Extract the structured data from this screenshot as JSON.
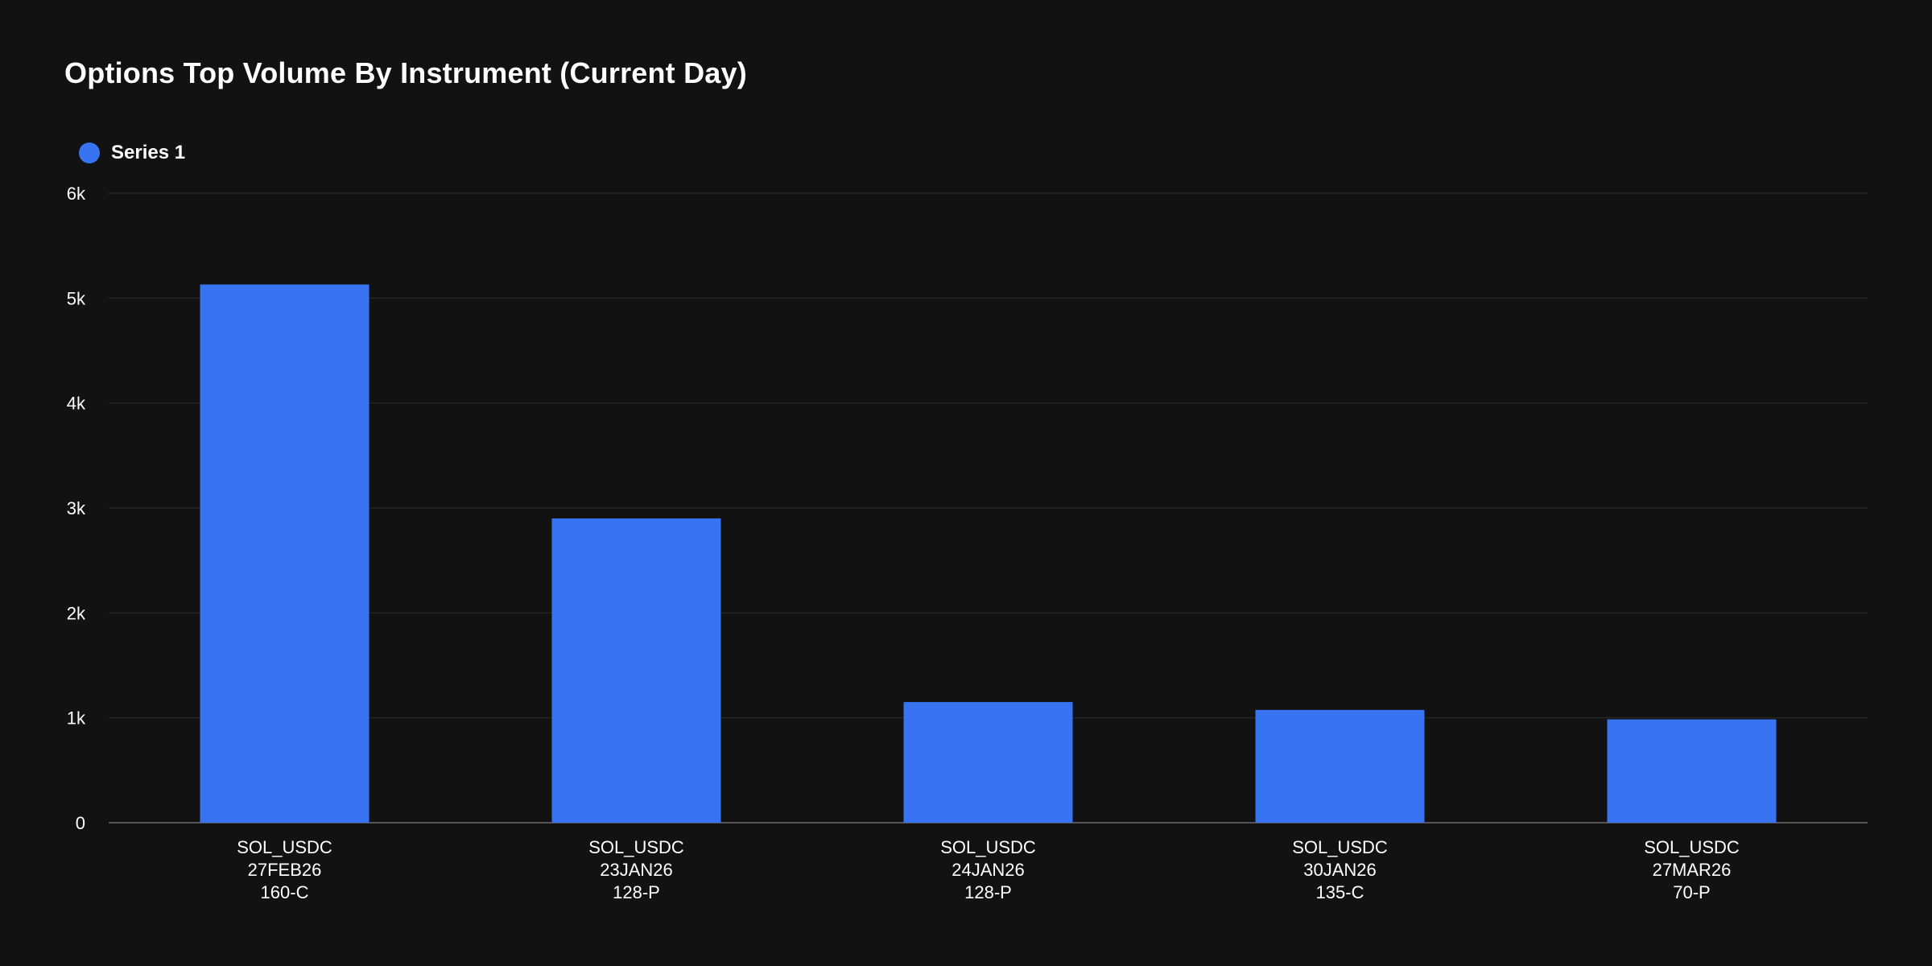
{
  "chart_data": {
    "type": "bar",
    "title": "Options Top Volume By Instrument (Current Day)",
    "categories": [
      [
        "SOL_USDC",
        "27FEB26",
        "160-C"
      ],
      [
        "SOL_USDC",
        "23JAN26",
        "128-P"
      ],
      [
        "SOL_USDC",
        "24JAN26",
        "128-P"
      ],
      [
        "SOL_USDC",
        "30JAN26",
        "135-C"
      ],
      [
        "SOL_USDC",
        "27MAR26",
        "70-P"
      ]
    ],
    "series": [
      {
        "name": "Series 1",
        "values": [
          5130,
          2900,
          1150,
          1075,
          985
        ],
        "color": "#3874f2"
      }
    ],
    "yticks": [
      "0",
      "1k",
      "2k",
      "3k",
      "4k",
      "5k",
      "6k"
    ],
    "ylim": [
      0,
      6000
    ],
    "grid": true,
    "legend": "top-left"
  },
  "colors": {
    "background": "#121212",
    "gridline": "#262626",
    "axis": "#555555",
    "text": "#ffffff"
  }
}
